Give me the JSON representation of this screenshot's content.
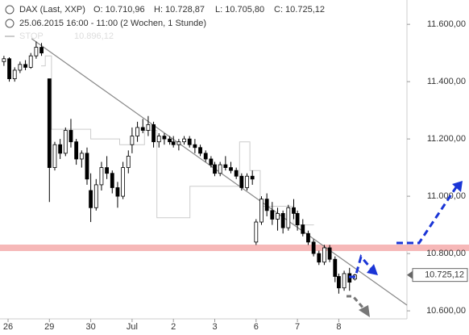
{
  "chart_data": {
    "type": "candlestick",
    "instrument": "DAX (Last, XXP)",
    "ohlc_labels": [
      "O: 10.710,96",
      "H: 10.728,87",
      "L: 10.705,80",
      "C: 10.725,12"
    ],
    "subtitle": "25.06.2015 16:00 - 11:00 (2 Wochen, 1 Stunde)",
    "stop_legend": "STOP",
    "stop_legend_value": "10.896,12",
    "last_label": "10.725,12",
    "xlim": [
      -0.195,
      9.649
    ],
    "ylim": [
      10572,
      11685
    ],
    "xticks": [
      {
        "value": 0,
        "label": "26"
      },
      {
        "value": 1,
        "label": "29"
      },
      {
        "value": 2,
        "label": "30"
      },
      {
        "value": 3,
        "label": "Jul"
      },
      {
        "value": 4,
        "label": "2"
      },
      {
        "value": 5,
        "label": "3"
      },
      {
        "value": 6,
        "label": "6"
      },
      {
        "value": 7,
        "label": "7"
      },
      {
        "value": 8,
        "label": "8"
      }
    ],
    "yticks": [
      {
        "value": 10600,
        "label": "10.600,00"
      },
      {
        "value": 10800,
        "label": "10.800,00"
      },
      {
        "value": 11000,
        "label": "11.000,00"
      },
      {
        "value": 11200,
        "label": "11.200,00"
      },
      {
        "value": 11400,
        "label": "11.400,00"
      },
      {
        "value": 11600,
        "label": "11.600,00"
      }
    ],
    "support_level": 10820,
    "candles": {
      "color": "#000000",
      "x": [
        -0.1,
        0.03,
        0.16,
        0.29,
        0.42,
        0.55,
        0.68,
        0.81,
        1.0,
        1.13,
        1.26,
        1.39,
        1.52,
        1.65,
        1.78,
        1.91,
        2.0,
        2.13,
        2.26,
        2.39,
        2.52,
        2.65,
        2.78,
        2.91,
        3.0,
        3.13,
        3.26,
        3.39,
        3.52,
        3.65,
        3.78,
        3.91,
        4.0,
        4.13,
        4.26,
        4.39,
        4.52,
        4.65,
        4.78,
        4.91,
        5.0,
        5.13,
        5.26,
        5.39,
        5.52,
        5.65,
        5.78,
        5.91,
        6.0,
        6.13,
        6.26,
        6.39,
        6.52,
        6.65,
        6.78,
        6.91,
        7.0,
        7.13,
        7.26,
        7.39,
        7.52,
        7.65,
        7.78,
        7.91,
        8.0,
        8.13,
        8.26,
        8.39
      ],
      "open": [
        11470,
        11480,
        11410,
        11440,
        11460,
        11450,
        11490,
        11520,
        11410,
        11100,
        11180,
        11150,
        11230,
        11190,
        11130,
        11150,
        11020,
        10960,
        11040,
        11100,
        11080,
        11030,
        11000,
        11100,
        11180,
        11210,
        11240,
        11230,
        11250,
        11190,
        11210,
        11200,
        11190,
        11180,
        11190,
        11200,
        11180,
        11170,
        11150,
        11130,
        11110,
        11080,
        11110,
        11100,
        11090,
        11070,
        11030,
        11070,
        10840,
        10910,
        10990,
        10950,
        10920,
        10940,
        10890,
        10960,
        10940,
        10900,
        10870,
        10840,
        10800,
        10770,
        10820,
        10780,
        10720,
        10680,
        10730,
        10710.96
      ],
      "high": [
        11490,
        11485,
        11450,
        11470,
        11475,
        11500,
        11540,
        11535,
        11410,
        11190,
        11200,
        11240,
        11270,
        11200,
        11160,
        11170,
        11080,
        11060,
        11120,
        11140,
        11090,
        11050,
        11120,
        11160,
        11240,
        11260,
        11270,
        11280,
        11260,
        11220,
        11220,
        11210,
        11210,
        11200,
        11210,
        11210,
        11200,
        11180,
        11160,
        11140,
        11120,
        11120,
        11140,
        11120,
        11100,
        11080,
        11080,
        11090,
        10920,
        11000,
        11010,
        10980,
        10960,
        10950,
        10970,
        10990,
        10950,
        10920,
        10880,
        10850,
        10810,
        10830,
        10830,
        10790,
        10730,
        10740,
        10750,
        10728.87
      ],
      "low": [
        11455,
        11400,
        11400,
        11430,
        11440,
        11445,
        11480,
        11490,
        10980,
        11090,
        11130,
        11140,
        11170,
        11110,
        11100,
        11040,
        10910,
        10950,
        11020,
        11060,
        11010,
        10960,
        10990,
        11080,
        11150,
        11190,
        11220,
        11210,
        11170,
        11170,
        11180,
        11180,
        11170,
        11160,
        11180,
        11170,
        11150,
        11140,
        11120,
        11100,
        11070,
        11070,
        11090,
        11080,
        11060,
        11020,
        11020,
        11040,
        10830,
        10900,
        10930,
        10900,
        10880,
        10870,
        10880,
        10920,
        10880,
        10860,
        10830,
        10790,
        10760,
        10760,
        10770,
        10700,
        10660,
        10670,
        10670,
        10705.8
      ],
      "close": [
        11480,
        11410,
        11440,
        11460,
        11450,
        11490,
        11520,
        11500,
        11100,
        11180,
        11150,
        11230,
        11190,
        11130,
        11150,
        11060,
        10960,
        11040,
        11100,
        11080,
        11030,
        11000,
        11100,
        11140,
        11210,
        11240,
        11230,
        11250,
        11190,
        11210,
        11200,
        11190,
        11180,
        11190,
        11200,
        11180,
        11170,
        11150,
        11130,
        11110,
        11080,
        11110,
        11100,
        11090,
        11070,
        11030,
        11070,
        11060,
        10910,
        10990,
        10950,
        10920,
        10940,
        10890,
        10960,
        10940,
        10900,
        10870,
        10840,
        10800,
        10770,
        10820,
        10780,
        10720,
        10680,
        10730,
        10700,
        10725.12
      ]
    },
    "stop_line": {
      "color": "#cccccc",
      "x": [
        0.8,
        0.9,
        0.9,
        1.05,
        1.05,
        2.0,
        2.0,
        2.7,
        2.7,
        3.3,
        3.3,
        3.6,
        3.6,
        4.4,
        4.4,
        5.6,
        5.6,
        5.85,
        5.85,
        6.1,
        6.1,
        6.9,
        6.9,
        7.4
      ],
      "values": [
        11455,
        11455,
        11490,
        11490,
        11234,
        11234,
        11200,
        11200,
        11180,
        11180,
        11230,
        11230,
        10925,
        10925,
        11035,
        11035,
        11190,
        11190,
        11090,
        11090,
        10965,
        10965,
        10900,
        10900
      ]
    },
    "trendline": {
      "color": "#888888",
      "x": [
        0.57,
        9.649
      ],
      "values": [
        11550,
        10620
      ]
    }
  }
}
